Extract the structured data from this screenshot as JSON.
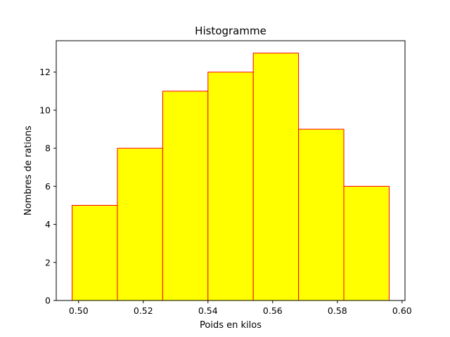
{
  "chart_data": {
    "type": "bar",
    "title": "Histogramme",
    "xlabel": "Poids en kilos",
    "ylabel": "Nombres de rations",
    "bin_edges": [
      0.498,
      0.512,
      0.526,
      0.54,
      0.554,
      0.568,
      0.582,
      0.596
    ],
    "values": [
      5,
      8,
      11,
      12,
      13,
      9,
      6
    ],
    "xlim": [
      0.4931,
      0.6009
    ],
    "ylim": [
      0,
      13.65
    ],
    "xticks": [
      "0.50",
      "0.52",
      "0.54",
      "0.56",
      "0.58",
      "0.60"
    ],
    "xtick_values": [
      0.5,
      0.52,
      0.54,
      0.56,
      0.58,
      0.6
    ],
    "yticks": [
      "0",
      "2",
      "4",
      "6",
      "8",
      "10",
      "12"
    ],
    "ytick_values": [
      0,
      2,
      4,
      6,
      8,
      10,
      12
    ],
    "bar_fill": "#ffff00",
    "bar_edge": "#ff0000",
    "grid": false,
    "legend": false
  }
}
